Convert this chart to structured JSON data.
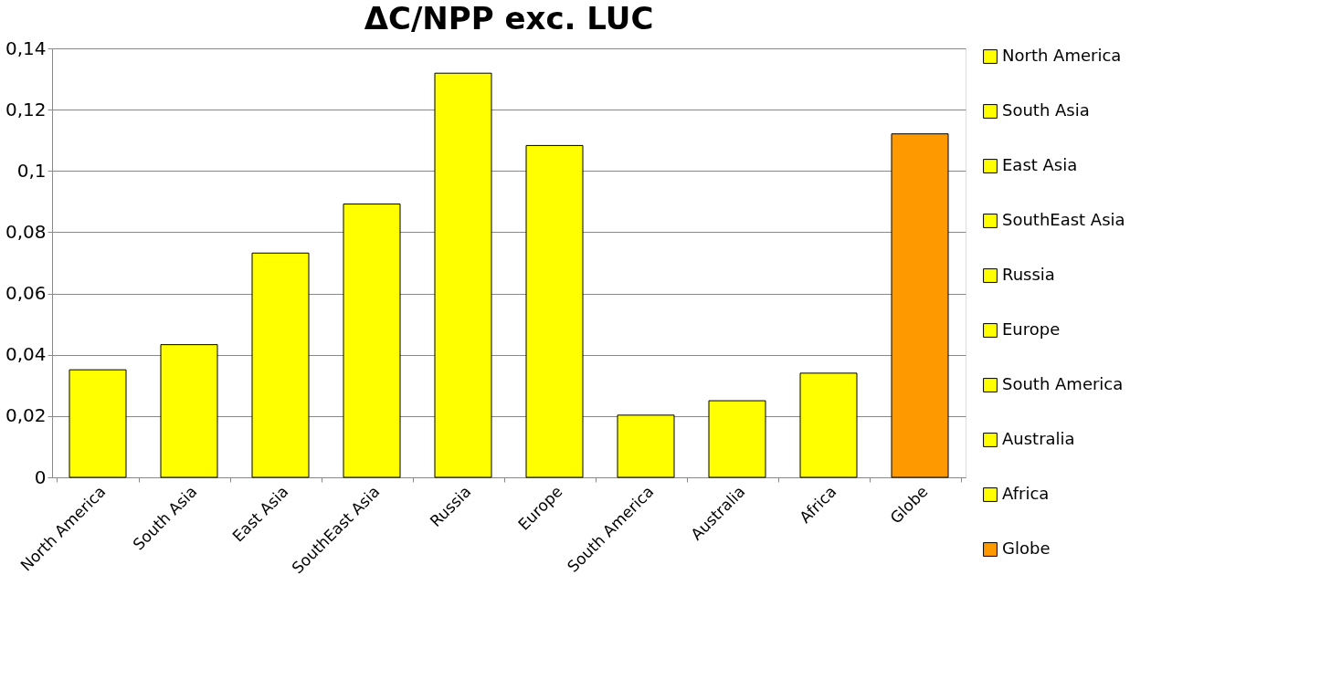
{
  "chart_data": {
    "type": "bar",
    "title": "ΔC/NPP exc. LUC",
    "categories": [
      "North America",
      "South Asia",
      "East Asia",
      "SouthEast Asia",
      "Russia",
      "Europe",
      "South America",
      "Australia",
      "Africa",
      "Globe"
    ],
    "series": [
      {
        "name": "North America",
        "color": "#ffff00",
        "values": [
          0.0351,
          null,
          null,
          null,
          null,
          null,
          null,
          null,
          null,
          null
        ]
      },
      {
        "name": "South Asia",
        "color": "#ffff00",
        "values": [
          null,
          0.0433,
          null,
          null,
          null,
          null,
          null,
          null,
          null,
          null
        ]
      },
      {
        "name": "East Asia",
        "color": "#ffff00",
        "values": [
          null,
          null,
          0.0732,
          null,
          null,
          null,
          null,
          null,
          null,
          null
        ]
      },
      {
        "name": "SouthEast Asia",
        "color": "#ffff00",
        "values": [
          null,
          null,
          null,
          0.0892,
          null,
          null,
          null,
          null,
          null,
          null
        ]
      },
      {
        "name": "Russia",
        "color": "#ffff00",
        "values": [
          null,
          null,
          null,
          null,
          0.1319,
          null,
          null,
          null,
          null,
          null
        ]
      },
      {
        "name": "Europe",
        "color": "#ffff00",
        "values": [
          null,
          null,
          null,
          null,
          null,
          0.1083,
          null,
          null,
          null,
          null
        ]
      },
      {
        "name": "South America",
        "color": "#ffff00",
        "values": [
          null,
          null,
          null,
          null,
          null,
          null,
          0.0203,
          null,
          null,
          null
        ]
      },
      {
        "name": "Australia",
        "color": "#ffff00",
        "values": [
          null,
          null,
          null,
          null,
          null,
          null,
          null,
          0.025,
          null,
          null
        ]
      },
      {
        "name": "Africa",
        "color": "#ffff00",
        "values": [
          null,
          null,
          null,
          null,
          null,
          null,
          null,
          null,
          0.034,
          null
        ]
      },
      {
        "name": "Globe",
        "color": "#ff9900",
        "values": [
          null,
          null,
          null,
          null,
          null,
          null,
          null,
          null,
          null,
          0.1121
        ]
      }
    ],
    "ylim": [
      0,
      0.14
    ],
    "yticks": [
      0,
      {
        "value": 0.02,
        "label": "0,02"
      },
      {
        "value": 0.04,
        "label": "0,04"
      },
      {
        "value": 0.06,
        "label": "0,06"
      },
      {
        "value": 0.08,
        "label": "0,08"
      },
      {
        "value": 0.1,
        "label": "0,1"
      },
      {
        "value": 0.12,
        "label": "0,12"
      },
      {
        "value": 0.14,
        "label": "0,14"
      }
    ],
    "grid": "y",
    "legend": "right"
  }
}
